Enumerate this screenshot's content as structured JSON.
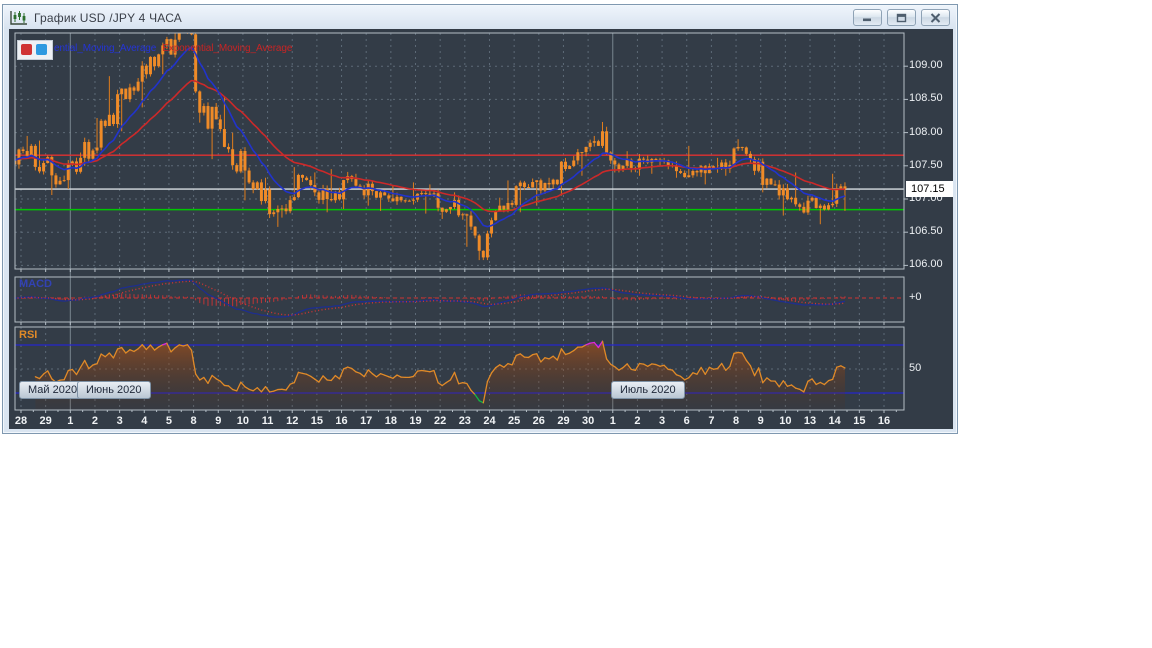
{
  "window": {
    "title": "График USD /JPY  4 ЧАСА",
    "titlebar_icon": "candlestick-chart-icon",
    "buttons": [
      {
        "name": "minimize",
        "icon": "minimize-icon"
      },
      {
        "name": "restore",
        "icon": "restore-icon"
      },
      {
        "name": "close",
        "icon": "close-icon"
      }
    ]
  },
  "legend": {
    "swatches": [
      {
        "name": "ema-red-swatch",
        "color": "#d03434"
      },
      {
        "name": "ema-blue-swatch",
        "color": "#2e9ae0"
      }
    ],
    "ema1_visible_text": "ential_Moving_Average",
    "ema1_color": "#2434d8",
    "ema2_visible_text": "Exponential_Moving_Average",
    "ema2_color": "#c82424"
  },
  "price_axis": {
    "labels": [
      "109.00",
      "108.50",
      "108.00",
      "107.50",
      "107.00",
      "106.50",
      "106.00"
    ],
    "values": [
      109.0,
      108.5,
      108.0,
      107.5,
      107.0,
      106.5,
      106.0
    ],
    "current_price": "107.15"
  },
  "panels": {
    "macd": {
      "label": "MACD",
      "axis_label": "+0"
    },
    "rsi": {
      "label": "RSI",
      "axis_label": "50"
    }
  },
  "time_axis": {
    "labels": [
      "28",
      "29",
      "1",
      "2",
      "3",
      "4",
      "5",
      "8",
      "9",
      "10",
      "11",
      "12",
      "15",
      "16",
      "17",
      "18",
      "19",
      "22",
      "23",
      "24",
      "25",
      "26",
      "29",
      "30",
      "1",
      "2",
      "3",
      "6",
      "7",
      "8",
      "9",
      "10",
      "13",
      "14",
      "15",
      "16"
    ],
    "month_tags": [
      {
        "text": "Май 2020"
      },
      {
        "text": "Июнь 2020"
      },
      {
        "text": "Июль 2020"
      }
    ]
  },
  "chart_data": {
    "type": "candlestick",
    "symbol": "USD/JPY",
    "timeframe_hours": 4,
    "candles_per_day": 6,
    "visible_price_range": [
      105.95,
      109.5
    ],
    "price_gridline_step": 0.5,
    "horizontal_lines": [
      {
        "price": 107.66,
        "color": "#e03030",
        "style": "solid"
      },
      {
        "price": 107.15,
        "color": "#d8dde2",
        "style": "solid"
      },
      {
        "price": 106.84,
        "color": "#00c800",
        "style": "solid"
      }
    ],
    "rsi_levels": {
      "upper": 70,
      "lower": 30,
      "mid": 50
    },
    "month_separators_at_labels": [
      2,
      24
    ],
    "indicator_settings": {
      "ema_fast_period": 12,
      "ema_slow_period": 30,
      "macd": [
        12,
        26,
        9
      ],
      "rsi_period": 14
    },
    "days": [
      {
        "date": "28",
        "o": 107.58,
        "h": 107.95,
        "l": 107.42,
        "c": 107.8
      },
      {
        "date": "29",
        "o": 107.8,
        "h": 107.88,
        "l": 107.06,
        "c": 107.22
      },
      {
        "date": "1",
        "o": 107.22,
        "h": 107.7,
        "l": 107.15,
        "c": 107.62
      },
      {
        "date": "2",
        "o": 107.62,
        "h": 108.22,
        "l": 107.5,
        "c": 108.1
      },
      {
        "date": "3",
        "o": 108.1,
        "h": 108.85,
        "l": 108.02,
        "c": 108.68
      },
      {
        "date": "4",
        "o": 108.68,
        "h": 109.15,
        "l": 108.38,
        "c": 109.0
      },
      {
        "date": "5",
        "o": 109.0,
        "h": 109.68,
        "l": 108.88,
        "c": 109.58
      },
      {
        "date": "8",
        "o": 109.58,
        "h": 109.7,
        "l": 108.15,
        "c": 108.4,
        "intra": [
          109.55,
          109.62,
          109.48,
          108.62,
          108.3,
          108.4
        ],
        "hiK": 1,
        "loK": 4
      },
      {
        "date": "9",
        "o": 108.4,
        "h": 108.55,
        "l": 107.6,
        "c": 107.75
      },
      {
        "date": "10",
        "o": 107.75,
        "h": 108.0,
        "l": 106.98,
        "c": 107.15
      },
      {
        "date": "11",
        "o": 107.15,
        "h": 107.32,
        "l": 106.58,
        "c": 106.85
      },
      {
        "date": "12",
        "o": 106.85,
        "h": 107.48,
        "l": 106.72,
        "c": 107.32
      },
      {
        "date": "15",
        "o": 107.32,
        "h": 107.4,
        "l": 106.8,
        "c": 107.0
      },
      {
        "date": "16",
        "o": 107.0,
        "h": 107.45,
        "l": 106.85,
        "c": 107.3
      },
      {
        "date": "17",
        "o": 107.3,
        "h": 107.38,
        "l": 106.9,
        "c": 107.02
      },
      {
        "date": "18",
        "o": 107.02,
        "h": 107.2,
        "l": 106.82,
        "c": 106.98
      },
      {
        "date": "19",
        "o": 106.98,
        "h": 107.25,
        "l": 106.78,
        "c": 107.08
      },
      {
        "date": "22",
        "o": 107.08,
        "h": 107.22,
        "l": 106.7,
        "c": 106.88
      },
      {
        "date": "23",
        "o": 106.88,
        "h": 107.1,
        "l": 106.28,
        "c": 106.45
      },
      {
        "date": "24",
        "o": 106.45,
        "h": 107.02,
        "l": 106.08,
        "c": 106.9,
        "intra": [
          106.22,
          106.12,
          106.48,
          106.68,
          106.82,
          106.9
        ],
        "hiK": 5,
        "loK": 0
      },
      {
        "date": "25",
        "o": 106.9,
        "h": 107.28,
        "l": 106.8,
        "c": 107.18
      },
      {
        "date": "26",
        "o": 107.18,
        "h": 107.32,
        "l": 106.9,
        "c": 107.22
      },
      {
        "date": "29",
        "o": 107.22,
        "h": 107.65,
        "l": 107.05,
        "c": 107.58
      },
      {
        "date": "30",
        "o": 107.58,
        "h": 107.95,
        "l": 107.35,
        "c": 107.8
      },
      {
        "date": "1",
        "o": 107.8,
        "h": 108.16,
        "l": 107.4,
        "c": 107.5,
        "intra": [
          108.02,
          107.7,
          107.58,
          107.52,
          107.44,
          107.5
        ],
        "hiK": 0,
        "loK": 3
      },
      {
        "date": "2",
        "o": 107.5,
        "h": 107.72,
        "l": 107.35,
        "c": 107.55
      },
      {
        "date": "3",
        "o": 107.55,
        "h": 107.62,
        "l": 107.38,
        "c": 107.5
      },
      {
        "date": "6",
        "o": 107.5,
        "h": 107.8,
        "l": 107.32,
        "c": 107.4
      },
      {
        "date": "7",
        "o": 107.4,
        "h": 107.62,
        "l": 107.22,
        "c": 107.55
      },
      {
        "date": "8",
        "o": 107.55,
        "h": 107.9,
        "l": 107.35,
        "c": 107.68
      },
      {
        "date": "9",
        "o": 107.68,
        "h": 107.72,
        "l": 107.1,
        "c": 107.22
      },
      {
        "date": "10",
        "o": 107.22,
        "h": 107.4,
        "l": 106.75,
        "c": 106.92
      },
      {
        "date": "13",
        "o": 106.92,
        "h": 107.05,
        "l": 106.62,
        "c": 106.9
      },
      {
        "date": "14",
        "o": 106.9,
        "h": 107.38,
        "l": 106.82,
        "c": 107.15
      }
    ],
    "colors": {
      "candle": "#ef8b28",
      "candle_wick": "#e07d1c",
      "ema_fast": "#2133cc",
      "ema_slow": "#cc2929",
      "macd_line": "#1e2e8e",
      "macd_signal": "#d23434",
      "macd_histogram": "#d23434",
      "rsi_line": "#e08a28",
      "rsi_overbought": "#dc28dc",
      "rsi_oversold": "#12b844",
      "rsi_level_line": "#2525cc",
      "grid": "#606d7a",
      "panel_border": "#b4bec6",
      "separator": "#78858f",
      "axis_text": "#eef1f4",
      "chart_background": "#333c47"
    }
  }
}
